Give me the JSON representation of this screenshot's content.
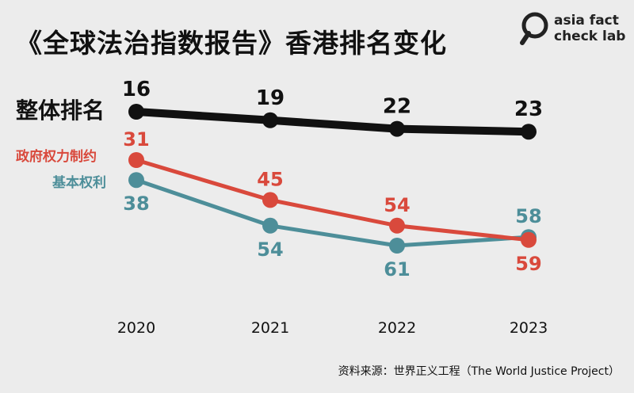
{
  "title": "《全球法治指数报告》香港排名变化",
  "logo": {
    "line1": "asia fact",
    "line2": "check lab"
  },
  "source": "资料来源：世界正义工程（The World Justice Project）",
  "colors": {
    "overall": "#111111",
    "constraints": "#d9493c",
    "rights": "#4d8e99",
    "background": "#ececec"
  },
  "chart_data": {
    "type": "line",
    "x": [
      "2020",
      "2021",
      "2022",
      "2023"
    ],
    "series": [
      {
        "name": "整体排名",
        "values": [
          16,
          19,
          22,
          23
        ]
      },
      {
        "name": "政府权力制约",
        "values": [
          31,
          45,
          54,
          59
        ]
      },
      {
        "name": "基本权利",
        "values": [
          38,
          54,
          61,
          58
        ]
      }
    ],
    "y_axis": "rank (inverted: lower rank drawn higher)",
    "grid": false
  }
}
